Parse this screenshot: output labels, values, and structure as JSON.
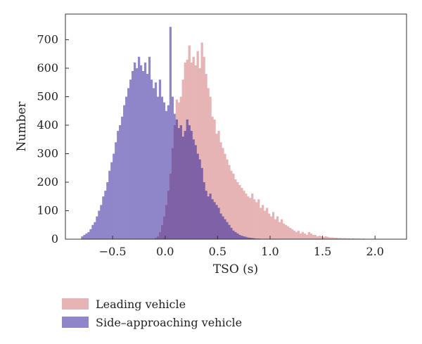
{
  "chart_data": {
    "type": "bar",
    "title": "",
    "xlabel": "TSO (s)",
    "ylabel": "Number",
    "xlim": [
      -0.95,
      2.3
    ],
    "ylim": [
      0,
      790
    ],
    "x_ticks": [
      -0.5,
      0.0,
      0.5,
      1.0,
      1.5,
      2.0
    ],
    "x_tick_labels": [
      "−0.5",
      "0.0",
      "0.5",
      "1.0",
      "1.5",
      "2.0"
    ],
    "y_ticks": [
      0,
      100,
      200,
      300,
      400,
      500,
      600,
      700
    ],
    "y_tick_labels": [
      "0",
      "100",
      "200",
      "300",
      "400",
      "500",
      "600",
      "700"
    ],
    "grid": false,
    "legend_position": "below-left",
    "bin_width": 0.02,
    "series": [
      {
        "name": "Leading vehicle",
        "color": "#e7b4b6",
        "bin_start": -0.1,
        "counts": [
          5,
          10,
          25,
          50,
          80,
          120,
          170,
          230,
          320,
          400,
          490,
          480,
          500,
          560,
          620,
          630,
          680,
          620,
          640,
          610,
          660,
          600,
          690,
          640,
          580,
          530,
          500,
          430,
          420,
          370,
          380,
          340,
          320,
          300,
          280,
          260,
          240,
          230,
          210,
          200,
          190,
          180,
          170,
          160,
          150,
          145,
          160,
          140,
          130,
          140,
          110,
          120,
          100,
          110,
          90,
          80,
          95,
          70,
          80,
          60,
          70,
          55,
          50,
          45,
          40,
          35,
          30,
          25,
          30,
          20,
          25,
          20,
          15,
          25,
          20,
          15,
          15,
          10,
          12,
          10,
          8,
          10,
          8,
          6,
          6,
          5,
          5,
          4,
          4,
          3,
          4,
          3,
          3,
          2,
          3,
          2,
          2,
          2,
          1,
          2,
          1,
          1,
          1,
          1,
          1,
          1,
          1,
          1,
          1,
          1,
          1
        ]
      },
      {
        "name": "Side–approaching vehicle",
        "color": "#8e86c9",
        "bin_start": -0.8,
        "counts": [
          10,
          15,
          20,
          25,
          35,
          50,
          60,
          80,
          100,
          120,
          150,
          170,
          200,
          240,
          270,
          300,
          340,
          380,
          400,
          430,
          470,
          500,
          530,
          560,
          590,
          620,
          600,
          640,
          610,
          590,
          620,
          580,
          640,
          560,
          530,
          550,
          500,
          560,
          500,
          480,
          450,
          470,
          745,
          500,
          440,
          420,
          390,
          400,
          360,
          380,
          420,
          400,
          380,
          350,
          330,
          300,
          280,
          250,
          200,
          170,
          150,
          160,
          140,
          130,
          120,
          110,
          90,
          80,
          70,
          60,
          50,
          40,
          30,
          25,
          20,
          15,
          12,
          10,
          8,
          6,
          5,
          4,
          3,
          2,
          2,
          1,
          1,
          1,
          1,
          1
        ]
      }
    ]
  }
}
